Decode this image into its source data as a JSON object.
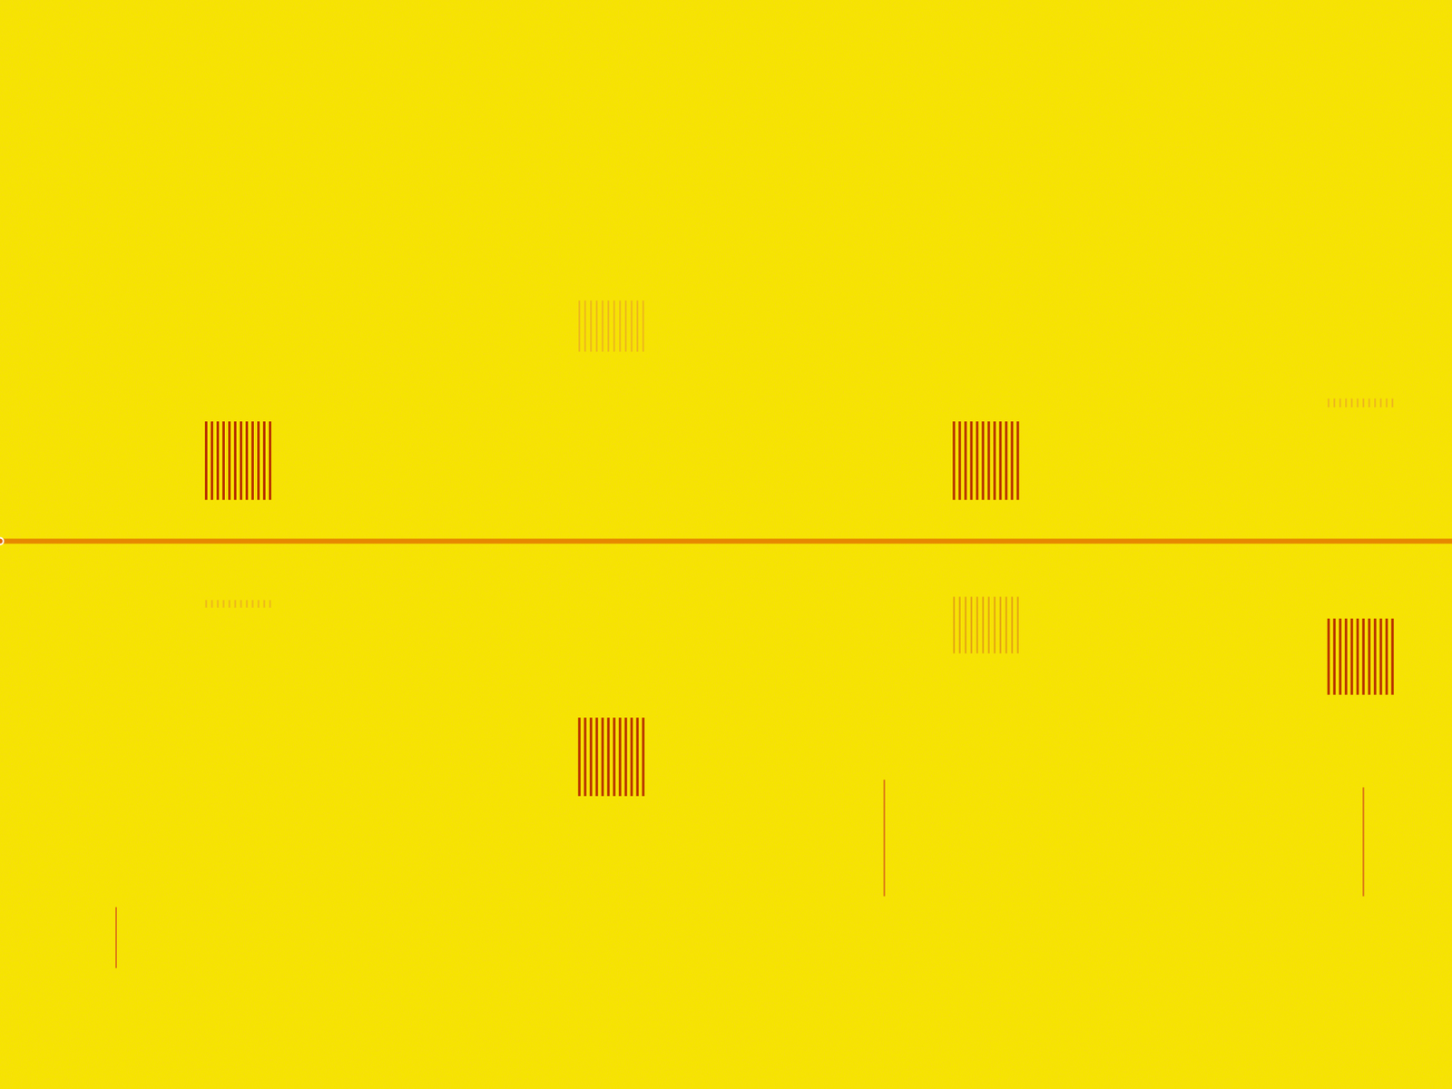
{
  "chart_data": {
    "type": "spectrogram",
    "tick_labels": false,
    "grid": false,
    "xlim": [
      0,
      100
    ],
    "ylim": [
      0,
      100
    ],
    "background_color": "#f6e400",
    "carrier": {
      "frequency": 50.3,
      "color": "#e06a00"
    },
    "bursts": [
      {
        "times": [
          14.2,
          14.6,
          15.0,
          15.4,
          15.8,
          16.2,
          16.6,
          17.0,
          17.4,
          17.8,
          18.2,
          18.6
        ],
        "freq_range": [
          54.1,
          61.3
        ],
        "color": "#b32000"
      },
      {
        "times": [
          39.9,
          40.3,
          40.7,
          41.1,
          41.5,
          41.9,
          42.3,
          42.7,
          43.1,
          43.5,
          43.9,
          44.3
        ],
        "freq_range": [
          26.9,
          34.1
        ],
        "color": "#b32000"
      },
      {
        "times": [
          65.7,
          66.1,
          66.5,
          66.9,
          67.3,
          67.7,
          68.1,
          68.5,
          68.9,
          69.3,
          69.7,
          70.1
        ],
        "freq_range": [
          54.1,
          61.3
        ],
        "color": "#b32000"
      },
      {
        "times": [
          91.5,
          91.9,
          92.3,
          92.7,
          93.1,
          93.5,
          93.9,
          94.3,
          94.7,
          95.1,
          95.5,
          95.9
        ],
        "freq_range": [
          36.2,
          43.2
        ],
        "color": "#b32000"
      }
    ],
    "faint_bursts": [
      {
        "times": [
          14.2,
          14.6,
          15.0,
          15.4,
          15.8,
          16.2,
          16.6,
          17.0,
          17.4,
          17.8,
          18.2,
          18.6
        ],
        "freq_range": [
          44.2,
          44.9
        ],
        "color": "#e89a30"
      },
      {
        "times": [
          39.9,
          40.3,
          40.7,
          41.1,
          41.5,
          41.9,
          42.3,
          42.7,
          43.1,
          43.5,
          43.9,
          44.3
        ],
        "freq_range": [
          67.7,
          72.4
        ],
        "color": "#e89a30"
      },
      {
        "times": [
          65.7,
          66.1,
          66.5,
          66.9,
          67.3,
          67.7,
          68.1,
          68.5,
          68.9,
          69.3,
          69.7,
          70.1
        ],
        "freq_range": [
          40.0,
          45.2
        ],
        "color": "#d97a20"
      },
      {
        "times": [
          91.5,
          91.9,
          92.3,
          92.7,
          93.1,
          93.5,
          93.9,
          94.3,
          94.7,
          95.1,
          95.5,
          95.9
        ],
        "freq_range": [
          62.6,
          63.4
        ],
        "color": "#e89a30"
      }
    ],
    "spikes": [
      {
        "time": 8.0,
        "freq_range": [
          11.1,
          16.7
        ],
        "color": "#d8601a"
      },
      {
        "time": 60.9,
        "freq_range": [
          17.7,
          28.4
        ],
        "color": "#d8601a"
      },
      {
        "time": 93.9,
        "freq_range": [
          17.7,
          27.7
        ],
        "color": "#d8601a"
      }
    ]
  }
}
